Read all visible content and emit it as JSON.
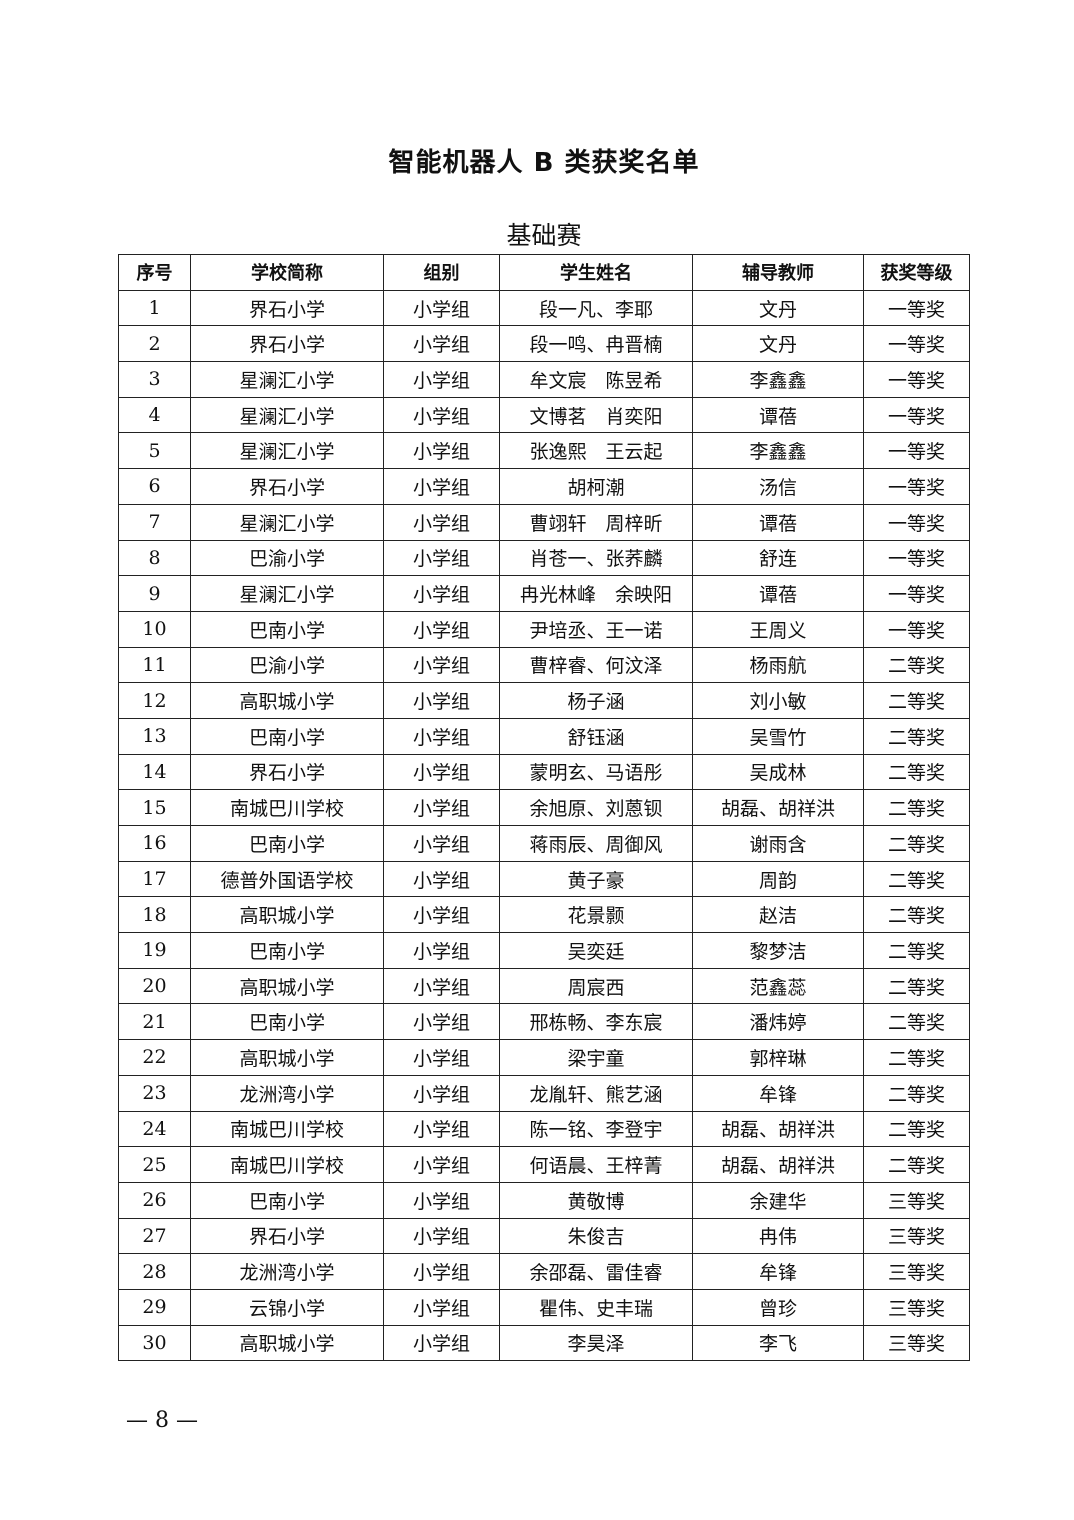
{
  "title": "智能机器人 B 类获奖名单",
  "subtitle": "基础赛",
  "table": {
    "headers": [
      "序号",
      "学校简称",
      "组别",
      "学生姓名",
      "辅导教师",
      "获奖等级"
    ],
    "rows": [
      [
        "1",
        "界石小学",
        "小学组",
        "段一凡、李耶",
        "文丹",
        "一等奖"
      ],
      [
        "2",
        "界石小学",
        "小学组",
        "段一鸣、冉晋楠",
        "文丹",
        "一等奖"
      ],
      [
        "3",
        "星澜汇小学",
        "小学组",
        "牟文宸　陈昱希",
        "李鑫鑫",
        "一等奖"
      ],
      [
        "4",
        "星澜汇小学",
        "小学组",
        "文博茗　肖奕阳",
        "谭蓓",
        "一等奖"
      ],
      [
        "5",
        "星澜汇小学",
        "小学组",
        "张逸熙　王云起",
        "李鑫鑫",
        "一等奖"
      ],
      [
        "6",
        "界石小学",
        "小学组",
        "胡柯潮",
        "汤信",
        "一等奖"
      ],
      [
        "7",
        "星澜汇小学",
        "小学组",
        "曹翊轩　周梓昕",
        "谭蓓",
        "一等奖"
      ],
      [
        "8",
        "巴渝小学",
        "小学组",
        "肖苍一、张荞麟",
        "舒连",
        "一等奖"
      ],
      [
        "9",
        "星澜汇小学",
        "小学组",
        "冉光林峰　余映阳",
        "谭蓓",
        "一等奖"
      ],
      [
        "10",
        "巴南小学",
        "小学组",
        "尹培丞、王一诺",
        "王周义",
        "一等奖"
      ],
      [
        "11",
        "巴渝小学",
        "小学组",
        "曹梓睿、何汶泽",
        "杨雨航",
        "二等奖"
      ],
      [
        "12",
        "高职城小学",
        "小学组",
        "杨子涵",
        "刘小敏",
        "二等奖"
      ],
      [
        "13",
        "巴南小学",
        "小学组",
        "舒钰涵",
        "吴雪竹",
        "二等奖"
      ],
      [
        "14",
        "界石小学",
        "小学组",
        "蒙明玄、马语彤",
        "吴成林",
        "二等奖"
      ],
      [
        "15",
        "南城巴川学校",
        "小学组",
        "余旭原、刘蒽钡",
        "胡磊、胡祥洪",
        "二等奖"
      ],
      [
        "16",
        "巴南小学",
        "小学组",
        "蒋雨辰、周御风",
        "谢雨含",
        "二等奖"
      ],
      [
        "17",
        "德普外国语学校",
        "小学组",
        "黄子豪",
        "周韵",
        "二等奖"
      ],
      [
        "18",
        "高职城小学",
        "小学组",
        "花景颢",
        "赵洁",
        "二等奖"
      ],
      [
        "19",
        "巴南小学",
        "小学组",
        "吴奕廷",
        "黎梦洁",
        "二等奖"
      ],
      [
        "20",
        "高职城小学",
        "小学组",
        "周宸西",
        "范鑫蕊",
        "二等奖"
      ],
      [
        "21",
        "巴南小学",
        "小学组",
        "邢栋畅、李东宸",
        "潘炜婷",
        "二等奖"
      ],
      [
        "22",
        "高职城小学",
        "小学组",
        "梁宇童",
        "郭梓琳",
        "二等奖"
      ],
      [
        "23",
        "龙洲湾小学",
        "小学组",
        "龙胤轩、熊艺涵",
        "牟锋",
        "二等奖"
      ],
      [
        "24",
        "南城巴川学校",
        "小学组",
        "陈一铭、李登宇",
        "胡磊、胡祥洪",
        "二等奖"
      ],
      [
        "25",
        "南城巴川学校",
        "小学组",
        "何语晨、王梓菁",
        "胡磊、胡祥洪",
        "二等奖"
      ],
      [
        "26",
        "巴南小学",
        "小学组",
        "黄敬博",
        "余建华",
        "三等奖"
      ],
      [
        "27",
        "界石小学",
        "小学组",
        "朱俊吉",
        "冉伟",
        "三等奖"
      ],
      [
        "28",
        "龙洲湾小学",
        "小学组",
        "余邵磊、雷佳睿",
        "牟锋",
        "三等奖"
      ],
      [
        "29",
        "云锦小学",
        "小学组",
        "瞿伟、史丰瑞",
        "曾珍",
        "三等奖"
      ],
      [
        "30",
        "高职城小学",
        "小学组",
        "李昊泽",
        "李飞",
        "三等奖"
      ]
    ]
  },
  "footer": {
    "page_number": "— 8 —"
  }
}
